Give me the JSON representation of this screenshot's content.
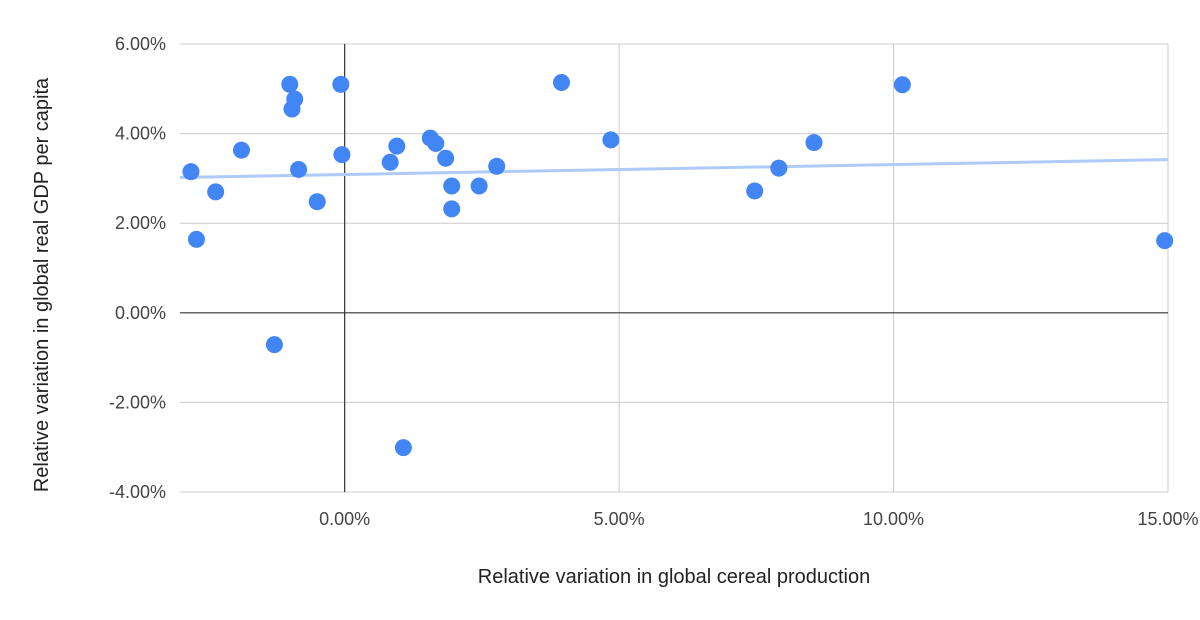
{
  "chart_data": {
    "type": "scatter",
    "xlabel": "Relative variation in global cereal production",
    "ylabel": "Relative variation in global real GDP per capita",
    "xlim": [
      -0.03,
      0.15
    ],
    "ylim": [
      -0.04,
      0.06
    ],
    "x_ticks": [
      {
        "value": 0.0,
        "label": "0.00%"
      },
      {
        "value": 0.05,
        "label": "5.00%"
      },
      {
        "value": 0.1,
        "label": "10.00%"
      },
      {
        "value": 0.15,
        "label": "15.00%"
      }
    ],
    "y_ticks": [
      {
        "value": -0.04,
        "label": "-4.00%"
      },
      {
        "value": -0.02,
        "label": "-2.00%"
      },
      {
        "value": 0.0,
        "label": "0.00%"
      },
      {
        "value": 0.02,
        "label": "2.00%"
      },
      {
        "value": 0.04,
        "label": "4.00%"
      },
      {
        "value": 0.06,
        "label": "6.00%"
      }
    ],
    "grid": true,
    "point_color": "#4285F4",
    "trendline_color": "#AECBFA",
    "series": [
      {
        "points": [
          {
            "x": -0.028,
            "y": 0.0315
          },
          {
            "x": -0.027,
            "y": 0.0164
          },
          {
            "x": -0.0235,
            "y": 0.027
          },
          {
            "x": -0.0188,
            "y": 0.0363
          },
          {
            "x": -0.0128,
            "y": -0.0071
          },
          {
            "x": -0.01,
            "y": 0.051
          },
          {
            "x": -0.0096,
            "y": 0.0455
          },
          {
            "x": -0.0091,
            "y": 0.0477
          },
          {
            "x": -0.0084,
            "y": 0.032
          },
          {
            "x": -0.005,
            "y": 0.0248
          },
          {
            "x": -0.0007,
            "y": 0.051
          },
          {
            "x": -0.0005,
            "y": 0.0353
          },
          {
            "x": 0.0083,
            "y": 0.0336
          },
          {
            "x": 0.0095,
            "y": 0.0372
          },
          {
            "x": 0.0107,
            "y": -0.0301
          },
          {
            "x": 0.0156,
            "y": 0.039
          },
          {
            "x": 0.0166,
            "y": 0.0378
          },
          {
            "x": 0.0184,
            "y": 0.0345
          },
          {
            "x": 0.0195,
            "y": 0.0283
          },
          {
            "x": 0.0195,
            "y": 0.0232
          },
          {
            "x": 0.0245,
            "y": 0.0283
          },
          {
            "x": 0.0277,
            "y": 0.0327
          },
          {
            "x": 0.0395,
            "y": 0.0514
          },
          {
            "x": 0.0485,
            "y": 0.0386
          },
          {
            "x": 0.0747,
            "y": 0.0272
          },
          {
            "x": 0.0791,
            "y": 0.0323
          },
          {
            "x": 0.0855,
            "y": 0.038
          },
          {
            "x": 0.1016,
            "y": 0.0509
          },
          {
            "x": 0.1494,
            "y": 0.0161
          }
        ]
      }
    ],
    "trendline": {
      "x_start": -0.03,
      "y_start": 0.0302,
      "x_end": 0.15,
      "y_end": 0.0342
    }
  }
}
